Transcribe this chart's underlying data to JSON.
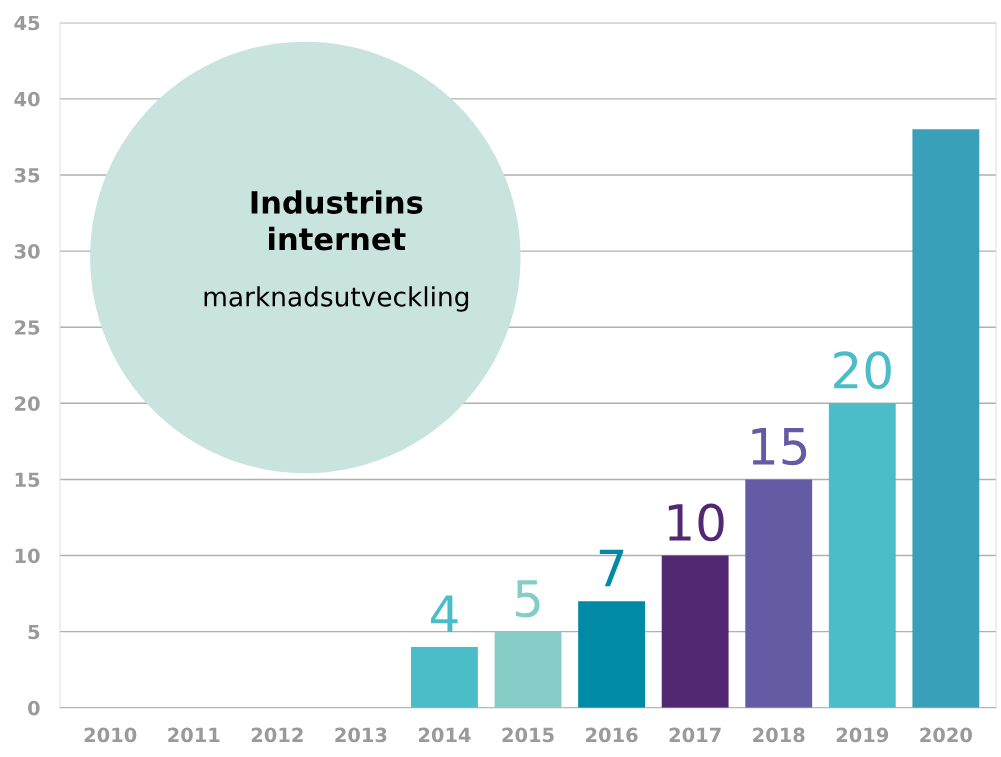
{
  "chart_data": {
    "type": "bar",
    "title": "Industrins internet",
    "subtitle": "marknadsutveckling",
    "categories": [
      "2010",
      "2011",
      "2012",
      "2013",
      "2014",
      "2015",
      "2016",
      "2017",
      "2018",
      "2019",
      "2020"
    ],
    "values": [
      null,
      null,
      null,
      null,
      4,
      5,
      7,
      10,
      15,
      20,
      38
    ],
    "colors": [
      "#4bbdc9",
      "#4bbdc9",
      "#4bbdc9",
      "#4bbdc9",
      "#4bbdc9",
      "#86cdc8",
      "#008aa6",
      "#522873",
      "#635ba3",
      "#4bbdc9",
      "#3a9fb8"
    ],
    "value_labels": [
      null,
      null,
      null,
      null,
      "4",
      "5",
      "7",
      "10",
      "15",
      "20",
      null
    ],
    "ylim": [
      0,
      45
    ],
    "yticks": [
      0,
      5,
      10,
      15,
      20,
      25,
      30,
      35,
      40,
      45
    ],
    "grid": "y"
  }
}
